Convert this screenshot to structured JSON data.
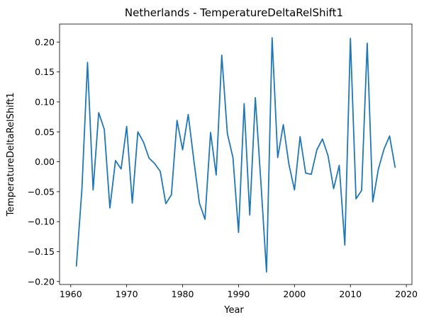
{
  "chart_data": {
    "type": "line",
    "title": "Netherlands - TemperatureDeltaRelShift1",
    "xlabel": "Year",
    "ylabel": "TemperatureDeltaRelShift1",
    "xlim": [
      1958,
      2021
    ],
    "ylim": [
      -0.205,
      0.23
    ],
    "xticks": [
      1960,
      1970,
      1980,
      1990,
      2000,
      2010,
      2020
    ],
    "xtick_labels": [
      "1960",
      "1970",
      "1980",
      "1990",
      "2000",
      "2010",
      "2020"
    ],
    "yticks": [
      -0.2,
      -0.15,
      -0.1,
      -0.05,
      0.0,
      0.05,
      0.1,
      0.15,
      0.2
    ],
    "ytick_labels": [
      "−0.20",
      "−0.15",
      "−0.10",
      "−0.05",
      "0.00",
      "0.05",
      "0.10",
      "0.15",
      "0.20"
    ],
    "grid": false,
    "series": [
      {
        "color": "#1f77b4",
        "x": [
          1961,
          1962,
          1963,
          1964,
          1965,
          1966,
          1967,
          1968,
          1969,
          1970,
          1971,
          1972,
          1973,
          1974,
          1975,
          1976,
          1977,
          1978,
          1979,
          1980,
          1981,
          1982,
          1983,
          1984,
          1985,
          1986,
          1987,
          1988,
          1989,
          1990,
          1991,
          1992,
          1993,
          1994,
          1995,
          1996,
          1997,
          1998,
          1999,
          2000,
          2001,
          2002,
          2003,
          2004,
          2005,
          2006,
          2007,
          2008,
          2009,
          2010,
          2011,
          2012,
          2013,
          2014,
          2015,
          2016,
          2017,
          2018
        ],
        "y": [
          -0.175,
          -0.045,
          0.166,
          -0.047,
          0.082,
          0.054,
          -0.077,
          0.002,
          -0.012,
          0.059,
          -0.069,
          0.05,
          0.033,
          0.006,
          -0.003,
          -0.016,
          -0.07,
          -0.055,
          0.069,
          0.02,
          0.079,
          0.003,
          -0.069,
          -0.096,
          0.049,
          -0.022,
          0.178,
          0.047,
          0.007,
          -0.118,
          0.097,
          -0.089,
          0.107,
          -0.035,
          -0.184,
          0.207,
          0.007,
          0.062,
          -0.004,
          -0.047,
          0.042,
          -0.019,
          -0.021,
          0.02,
          0.038,
          0.01,
          -0.045,
          -0.006,
          -0.139,
          0.206,
          -0.062,
          -0.048,
          0.198,
          -0.067,
          -0.012,
          0.021,
          0.043,
          -0.01
        ]
      }
    ]
  }
}
